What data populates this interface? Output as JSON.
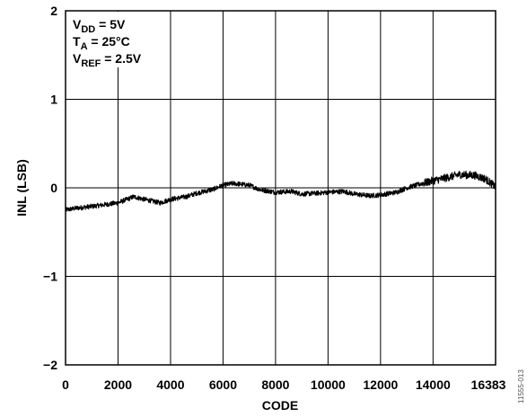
{
  "chart_data": {
    "type": "line",
    "title": "",
    "xlabel": "CODE",
    "ylabel": "INL (LSB)",
    "xlim": [
      0,
      16383
    ],
    "ylim": [
      -2,
      2
    ],
    "x_ticks": [
      "0",
      "2000",
      "4000",
      "6000",
      "8000",
      "10000",
      "12000",
      "14000",
      "16383"
    ],
    "y_ticks": [
      "2",
      "1",
      "0",
      "−1",
      "−2"
    ],
    "grid": true,
    "annotations": [
      {
        "base": "V",
        "sub": "DD",
        "rest": " = 5V"
      },
      {
        "base": "T",
        "sub": "A",
        "rest": " = 25°C"
      },
      {
        "base": "V",
        "sub": "REF",
        "rest": " = 2.5V"
      }
    ],
    "series": [
      {
        "color": "#000000",
        "x": [
          0,
          400,
          1000,
          1500,
          2000,
          2600,
          3000,
          3600,
          4000,
          4600,
          5000,
          5600,
          6000,
          6400,
          7000,
          7400,
          8000,
          8600,
          9000,
          9600,
          10000,
          10600,
          11000,
          11600,
          12000,
          12600,
          13000,
          13600,
          14000,
          14600,
          15000,
          15600,
          16000,
          16383
        ],
        "y": [
          -0.25,
          -0.23,
          -0.21,
          -0.19,
          -0.17,
          -0.1,
          -0.13,
          -0.17,
          -0.13,
          -0.1,
          -0.06,
          -0.02,
          0.03,
          0.05,
          0.03,
          -0.02,
          -0.05,
          -0.04,
          -0.07,
          -0.06,
          -0.05,
          -0.04,
          -0.07,
          -0.09,
          -0.08,
          -0.05,
          0.0,
          0.05,
          0.08,
          0.12,
          0.15,
          0.14,
          0.1,
          0.01
        ]
      }
    ]
  },
  "figure_id": "11555-013"
}
